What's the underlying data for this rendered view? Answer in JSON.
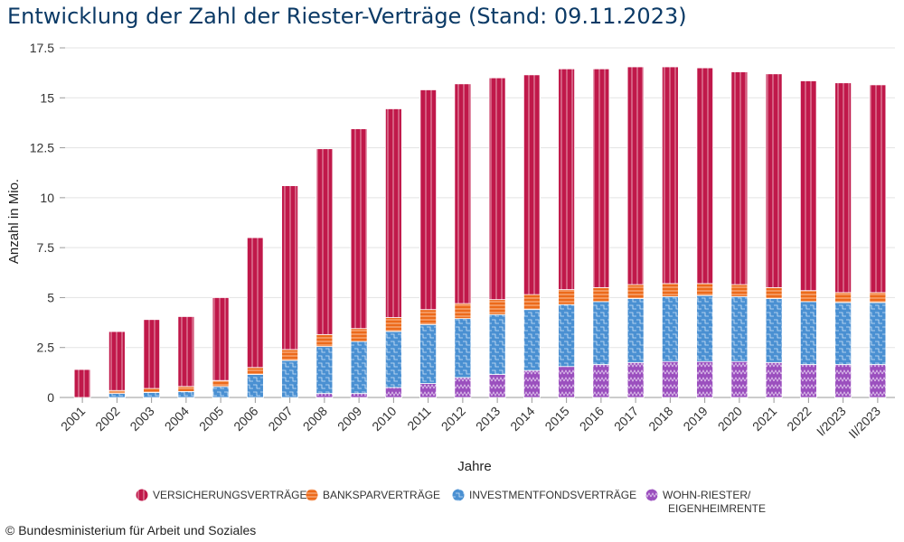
{
  "title": "Entwicklung der Zahl der Riester-Verträge (Stand: 09.11.2023)",
  "source": "© Bundesministerium für Arbeit und Soziales",
  "colors": {
    "versicherung": "#c0184a",
    "bank": "#ec6a1b",
    "invest": "#4a90d2",
    "wohn": "#9b4fbe"
  },
  "chart_data": {
    "type": "bar",
    "stacked": true,
    "xlabel": "Jahre",
    "ylabel": "Anzahl in Mio.",
    "ylim": [
      0,
      17.5
    ],
    "yticks": [
      "0",
      "2.5",
      "5",
      "7.5",
      "10",
      "12.5",
      "15",
      "17.5"
    ],
    "ytick_values": [
      0,
      2.5,
      5,
      7.5,
      10,
      12.5,
      15,
      17.5
    ],
    "grid": true,
    "legend_position": "bottom",
    "categories": [
      "2001",
      "2002",
      "2003",
      "2004",
      "2005",
      "2006",
      "2007",
      "2008",
      "2009",
      "2010",
      "2011",
      "2012",
      "2013",
      "2014",
      "2015",
      "2016",
      "2017",
      "2018",
      "2019",
      "2020",
      "2021",
      "2022",
      "I/2023",
      "II/2023"
    ],
    "series": [
      {
        "name": "WOHN-RIESTER/ EIGENHEIMRENTE",
        "key": "wohn",
        "values": [
          0,
          0,
          0,
          0,
          0,
          0,
          0,
          0.2,
          0.2,
          0.5,
          0.7,
          1.0,
          1.15,
          1.35,
          1.55,
          1.65,
          1.75,
          1.8,
          1.8,
          1.8,
          1.75,
          1.65,
          1.65,
          1.65
        ]
      },
      {
        "name": "INVESTMENTFONDSVERTRÄGE",
        "key": "invest",
        "values": [
          0,
          0.2,
          0.25,
          0.3,
          0.55,
          1.15,
          1.85,
          2.35,
          2.6,
          2.8,
          2.95,
          2.95,
          3.0,
          3.05,
          3.1,
          3.15,
          3.2,
          3.25,
          3.3,
          3.25,
          3.2,
          3.15,
          3.1,
          3.1
        ]
      },
      {
        "name": "BANKSPARVERTRÄGE",
        "key": "bank",
        "values": [
          0,
          0.15,
          0.2,
          0.25,
          0.3,
          0.35,
          0.55,
          0.6,
          0.65,
          0.7,
          0.75,
          0.75,
          0.75,
          0.75,
          0.75,
          0.7,
          0.7,
          0.65,
          0.6,
          0.6,
          0.55,
          0.55,
          0.5,
          0.5
        ]
      },
      {
        "name": "VERSICHERUNGSVERTRÄGE",
        "key": "versicherung",
        "values": [
          1.4,
          2.95,
          3.45,
          3.5,
          4.15,
          6.5,
          8.2,
          9.3,
          10.0,
          10.45,
          11.0,
          11.0,
          11.1,
          11.0,
          11.05,
          10.95,
          10.9,
          10.85,
          10.8,
          10.65,
          10.7,
          10.5,
          10.5,
          10.4
        ]
      }
    ],
    "legend": [
      {
        "key": "versicherung",
        "label": "VERSICHERUNGSVERTRÄGE"
      },
      {
        "key": "bank",
        "label": "BANKSPARVERTRÄGE"
      },
      {
        "key": "invest",
        "label": "INVESTMENTFONDSVERTRÄGE"
      },
      {
        "key": "wohn",
        "label_lines": [
          "WOHN-RIESTER/",
          "EIGENHEIMRENTE"
        ]
      }
    ]
  }
}
